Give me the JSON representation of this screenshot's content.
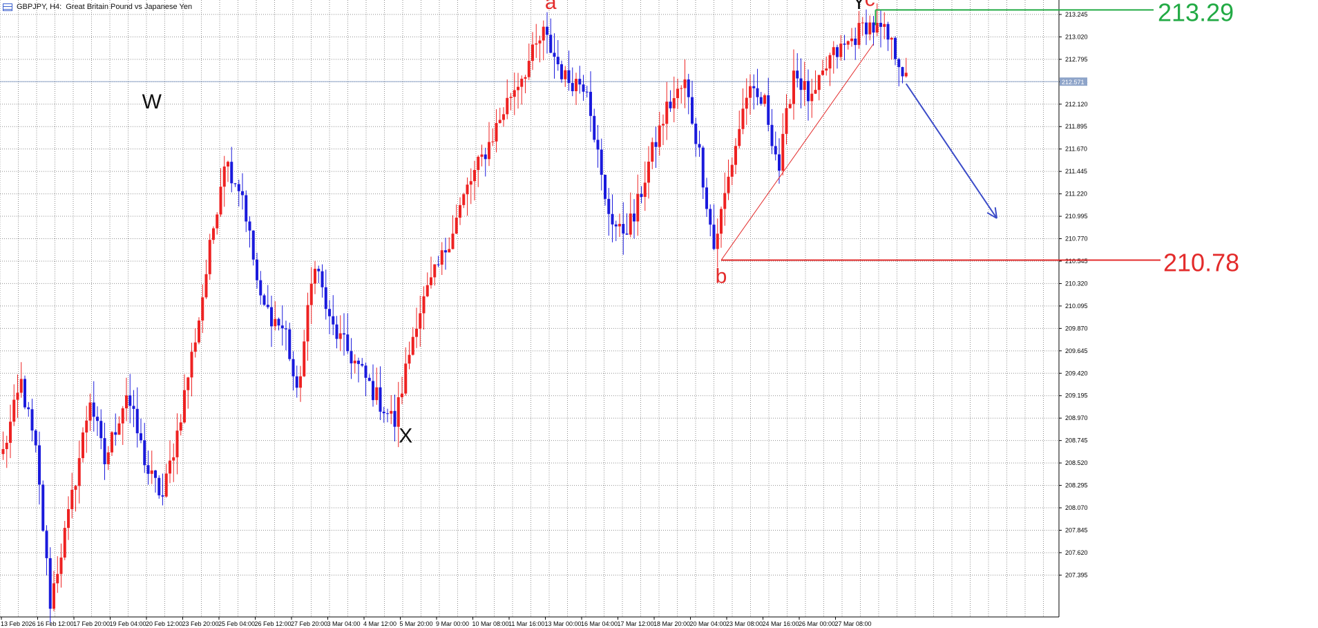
{
  "header": {
    "symbol_timeframe": "GBPJPY, H4:",
    "description": "Great Britain Pound vs Japanese Yen"
  },
  "icons": {
    "chart_menu": "list-icon"
  },
  "colors": {
    "bull": "#ee2222",
    "bear": "#1a1adc",
    "grid": "#8e8e8e",
    "current_price_line": "#8da3c8",
    "resistance": "#22aa44",
    "support": "#e32b2b",
    "trend_line": "#e32b2b",
    "forecast_arrow": "#3b4bc8",
    "wave_black": "#111111",
    "wave_red": "#e32b2b"
  },
  "chart_data": {
    "type": "candlestick",
    "symbol": "GBPJPY",
    "timeframe": "H4",
    "ylim": [
      207.2,
      213.39
    ],
    "price_ticks": [
      "213.245",
      "213.020",
      "212.795",
      "212.345",
      "212.120",
      "211.895",
      "211.670",
      "211.445",
      "211.220",
      "210.995",
      "210.770",
      "210.545",
      "210.320",
      "210.095",
      "209.870",
      "209.645",
      "209.420",
      "209.195",
      "208.970",
      "208.745",
      "208.520",
      "208.295",
      "208.070",
      "207.845",
      "207.620",
      "207.395"
    ],
    "time_ticks": [
      "13 Feb 2026",
      "16 Feb 12:00",
      "17 Feb 20:00",
      "19 Feb 04:00",
      "20 Feb 12:00",
      "23 Feb 20:00",
      "25 Feb 04:00",
      "26 Feb 12:00",
      "27 Feb 20:00",
      "3 Mar 04:00",
      "4 Mar 12:00",
      "5 Mar 20:00",
      "9 Mar 00:00",
      "10 Mar 08:00",
      "11 Mar 16:00",
      "13 Mar 00:00",
      "16 Mar 04:00",
      "17 Mar 12:00",
      "18 Mar 20:00",
      "20 Mar 04:00",
      "23 Mar 08:00",
      "24 Mar 16:00",
      "26 Mar 00:00",
      "27 Mar 08:00"
    ],
    "current_price": "212.571",
    "grid": true,
    "anchors": [
      {
        "i": 0,
        "p": 208.85
      },
      {
        "i": 5,
        "p": 209.55
      },
      {
        "i": 9,
        "p": 208.85
      },
      {
        "i": 13,
        "p": 207.35
      },
      {
        "i": 18,
        "p": 208.2
      },
      {
        "i": 24,
        "p": 209.4
      },
      {
        "i": 28,
        "p": 208.75
      },
      {
        "i": 34,
        "p": 209.45
      },
      {
        "i": 40,
        "p": 208.65
      },
      {
        "i": 44,
        "p": 208.4
      },
      {
        "i": 48,
        "p": 209.05
      },
      {
        "i": 54,
        "p": 210.2
      },
      {
        "i": 61,
        "p": 211.8
      },
      {
        "i": 66,
        "p": 211.45
      },
      {
        "i": 71,
        "p": 210.35
      },
      {
        "i": 78,
        "p": 210.05
      },
      {
        "i": 81,
        "p": 209.4
      },
      {
        "i": 86,
        "p": 210.8
      },
      {
        "i": 90,
        "p": 210.15
      },
      {
        "i": 98,
        "p": 209.7
      },
      {
        "i": 104,
        "p": 209.35
      },
      {
        "i": 108,
        "p": 209.15
      },
      {
        "i": 114,
        "p": 210.2
      },
      {
        "i": 121,
        "p": 210.8
      },
      {
        "i": 128,
        "p": 211.5
      },
      {
        "i": 134,
        "p": 211.95
      },
      {
        "i": 140,
        "p": 212.45
      },
      {
        "i": 144,
        "p": 212.7
      },
      {
        "i": 149,
        "p": 213.05
      },
      {
        "i": 155,
        "p": 212.6
      },
      {
        "i": 161,
        "p": 212.55
      },
      {
        "i": 166,
        "p": 211.35
      },
      {
        "i": 170,
        "p": 211.05
      },
      {
        "i": 174,
        "p": 211.2
      },
      {
        "i": 178,
        "p": 211.75
      },
      {
        "i": 183,
        "p": 212.3
      },
      {
        "i": 188,
        "p": 212.55
      },
      {
        "i": 192,
        "p": 211.85
      },
      {
        "i": 196,
        "p": 210.9
      },
      {
        "i": 200,
        "p": 211.6
      },
      {
        "i": 205,
        "p": 212.45
      },
      {
        "i": 210,
        "p": 212.35
      },
      {
        "i": 214,
        "p": 211.7
      },
      {
        "i": 218,
        "p": 212.7
      },
      {
        "i": 223,
        "p": 212.35
      },
      {
        "i": 228,
        "p": 212.8
      },
      {
        "i": 233,
        "p": 212.95
      },
      {
        "i": 238,
        "p": 213.15
      },
      {
        "i": 243,
        "p": 213.05
      },
      {
        "i": 247,
        "p": 212.8
      },
      {
        "i": 249,
        "p": 212.57
      }
    ],
    "candle_count": 250,
    "horizontal_levels": [
      {
        "label": "213.29",
        "value": 213.29,
        "color": "resistance"
      },
      {
        "label": "210.78",
        "value": 210.78,
        "color": "support"
      }
    ],
    "trend_line": {
      "from_candle": 198,
      "from_price": 210.78,
      "to_candle": 240,
      "to_price": 212.95
    },
    "forecast": {
      "from_candle": 249,
      "from_price": 212.55,
      "to_candle": 274,
      "to_price": 211.2
    },
    "wave_labels": [
      {
        "text": "W",
        "candle": 41,
        "price": 212.3,
        "color": "wave_black"
      },
      {
        "text": "X",
        "candle": 111,
        "price": 208.95,
        "color": "wave_black"
      },
      {
        "text": "a",
        "candle": 151,
        "price": 213.3,
        "color": "wave_red"
      },
      {
        "text": "b",
        "candle": 198,
        "price": 210.55,
        "color": "wave_red"
      },
      {
        "text": "Y",
        "candle": 236,
        "price": 213.3,
        "color": "wave_black"
      },
      {
        "text": "c",
        "candle": 239,
        "price": 213.33,
        "color": "wave_red"
      }
    ]
  }
}
